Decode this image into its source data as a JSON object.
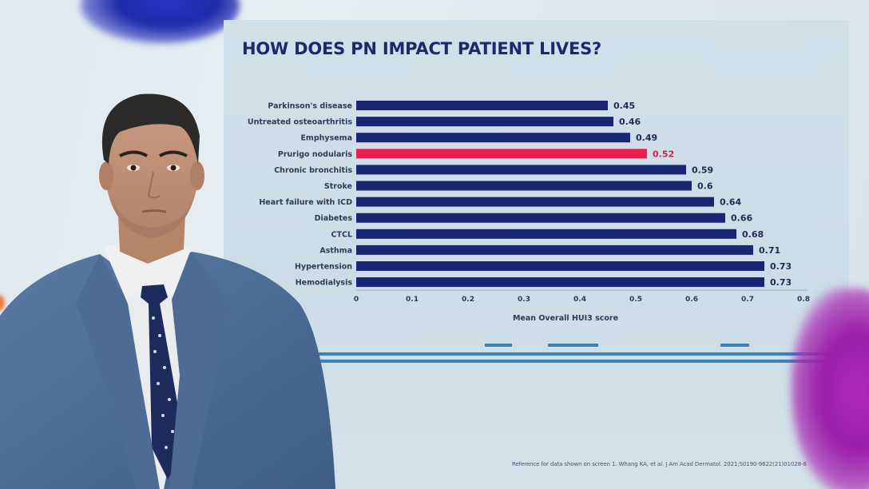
{
  "slide": {
    "title": "HOW DOES PN IMPACT PATIENT LIVES?",
    "reference": "Reference for data shown on screen 1. Whang KA, et al. J Am Acad Dermatol. 2021;S0190-9622(21)01028-8"
  },
  "colors": {
    "bar_default": "#182673",
    "bar_highlight": "#ec1c4b",
    "title": "#1b2a6b",
    "accent_stripe": "#3b82b8"
  },
  "chart_data": {
    "type": "bar",
    "orientation": "horizontal",
    "title": "HOW DOES PN IMPACT PATIENT LIVES?",
    "xlabel": "Mean Overall HUI3 score",
    "ylabel": "",
    "categories": [
      "Parkinson's disease",
      "Untreated osteoarthritis",
      "Emphysema",
      "Prurigo nodularis",
      "Chronic bronchitis",
      "Stroke",
      "Heart failure with ICD",
      "Diabetes",
      "CTCL",
      "Asthma",
      "Hypertension",
      "Hemodialysis"
    ],
    "values": [
      0.45,
      0.46,
      0.49,
      0.52,
      0.59,
      0.6,
      0.64,
      0.66,
      0.68,
      0.71,
      0.73,
      0.73
    ],
    "value_labels": [
      "0.45",
      "0.46",
      "0.49",
      "0.52",
      "0.59",
      "0.6",
      "0.64",
      "0.66",
      "0.68",
      "0.71",
      "0.73",
      "0.73"
    ],
    "highlight": "Prurigo nodularis",
    "xlim": [
      0,
      0.8
    ],
    "xticks": [
      "0",
      "0.1",
      "0.2",
      "0.3",
      "0.4",
      "0.5",
      "0.6",
      "0.7",
      "0.8"
    ],
    "grid": false,
    "legend": "none"
  }
}
